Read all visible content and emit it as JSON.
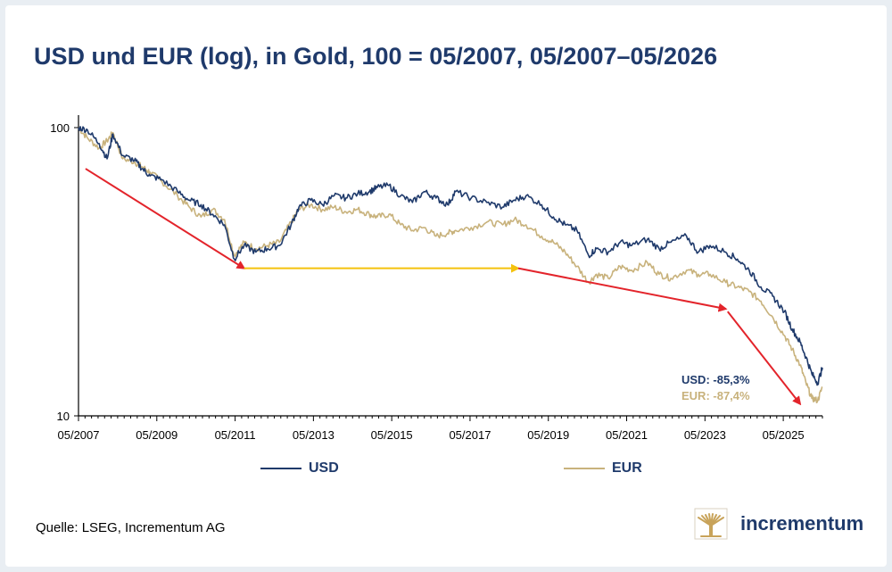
{
  "title": "USD und EUR (log), in Gold, 100 = 05/2007, 05/2007–05/2026",
  "source": "Quelle: LSEG, Incrementum AG",
  "logo_text": "incrementum",
  "colors": {
    "title": "#1f3a6b",
    "usd": "#1f3a6b",
    "eur": "#c8b27c",
    "red_arrow": "#e3242b",
    "yellow_arrow": "#f4c20d",
    "logo_gold": "#c8a35a"
  },
  "legend": {
    "usd": "USD",
    "eur": "EUR"
  },
  "annotations": {
    "usd": "USD: -85,3%",
    "eur": "EUR: -87,4%"
  },
  "chart_data": {
    "type": "line",
    "title": "USD und EUR (log), in Gold, 100 = 05/2007, 05/2007–05/2026",
    "xlabel": "",
    "ylabel": "",
    "y_scale": "log",
    "ylim": [
      10,
      100
    ],
    "y_ticks": [
      "100",
      "10"
    ],
    "x_ticks": [
      "05/2007",
      "05/2009",
      "05/2011",
      "05/2013",
      "05/2015",
      "05/2017",
      "05/2019",
      "05/2021",
      "05/2023",
      "05/2025"
    ],
    "xlim": [
      2007.37,
      2026.37
    ],
    "legend_position": "bottom",
    "grid": false,
    "series": [
      {
        "name": "USD",
        "x": [
          2007.37,
          2007.6,
          2007.9,
          2008.1,
          2008.25,
          2008.5,
          2008.8,
          2009.0,
          2009.2,
          2009.5,
          2009.9,
          2010.2,
          2010.5,
          2010.8,
          2011.1,
          2011.35,
          2011.6,
          2011.9,
          2012.2,
          2012.5,
          2012.8,
          2013.0,
          2013.3,
          2013.6,
          2013.9,
          2014.2,
          2014.5,
          2014.8,
          2015.0,
          2015.3,
          2015.6,
          2015.9,
          2016.2,
          2016.5,
          2016.8,
          2017.0,
          2017.4,
          2017.8,
          2018.2,
          2018.5,
          2018.8,
          2019.2,
          2019.5,
          2019.8,
          2020.1,
          2020.4,
          2020.6,
          2020.9,
          2021.2,
          2021.5,
          2021.9,
          2022.2,
          2022.5,
          2022.9,
          2023.2,
          2023.5,
          2023.9,
          2024.2,
          2024.5,
          2024.8,
          2025.1,
          2025.4,
          2025.6,
          2025.8,
          2025.95,
          2026.1,
          2026.25,
          2026.37
        ],
        "values": [
          100,
          98,
          88,
          78,
          95,
          80,
          77,
          72,
          68,
          66,
          60,
          56,
          54,
          50,
          46,
          35,
          39,
          37,
          38,
          39,
          46,
          53,
          56,
          54,
          58,
          57,
          59,
          60,
          62,
          63,
          58,
          55,
          60,
          57,
          54,
          60,
          57,
          55,
          53,
          56,
          58,
          54,
          49,
          46,
          44,
          36,
          38,
          37,
          40,
          39,
          41,
          38,
          40,
          42,
          37,
          39,
          37,
          35,
          32,
          28,
          26,
          23,
          20,
          18,
          16,
          14,
          13,
          14.7
        ]
      },
      {
        "name": "EUR",
        "x": [
          2007.37,
          2007.6,
          2007.9,
          2008.1,
          2008.25,
          2008.5,
          2008.8,
          2009.0,
          2009.2,
          2009.5,
          2009.9,
          2010.2,
          2010.5,
          2010.8,
          2011.1,
          2011.35,
          2011.6,
          2011.9,
          2012.2,
          2012.5,
          2012.8,
          2013.0,
          2013.3,
          2013.6,
          2013.9,
          2014.2,
          2014.5,
          2014.8,
          2015.0,
          2015.3,
          2015.6,
          2015.9,
          2016.2,
          2016.5,
          2016.8,
          2017.0,
          2017.4,
          2017.8,
          2018.2,
          2018.5,
          2018.8,
          2019.2,
          2019.5,
          2019.8,
          2020.1,
          2020.4,
          2020.6,
          2020.9,
          2021.2,
          2021.5,
          2021.9,
          2022.2,
          2022.5,
          2022.9,
          2023.2,
          2023.5,
          2023.9,
          2024.2,
          2024.5,
          2024.8,
          2025.1,
          2025.4,
          2025.6,
          2025.8,
          2025.95,
          2026.1,
          2026.25,
          2026.37
        ],
        "values": [
          100,
          92,
          85,
          90,
          96,
          78,
          76,
          73,
          70,
          65,
          58,
          53,
          49,
          52,
          48,
          36,
          40,
          38,
          39,
          40,
          47,
          52,
          54,
          52,
          53,
          51,
          52,
          50,
          49,
          50,
          46,
          44,
          45,
          42,
          43,
          44,
          45,
          47,
          46,
          48,
          46,
          42,
          40,
          37,
          33,
          29,
          31,
          30,
          33,
          32,
          34,
          31,
          30,
          32,
          31,
          31,
          29,
          28,
          27,
          25,
          22,
          19,
          17,
          15,
          13,
          11.5,
          11.3,
          12.6
        ]
      }
    ],
    "arrows": [
      {
        "color": "red",
        "from": [
          2007.55,
          72
        ],
        "to": [
          2011.6,
          32.5
        ]
      },
      {
        "color": "yellow",
        "from": [
          2011.6,
          32.5
        ],
        "to": [
          2018.6,
          32.5
        ]
      },
      {
        "color": "red",
        "from": [
          2018.6,
          32.5
        ],
        "to": [
          2023.9,
          23.5
        ]
      },
      {
        "color": "red",
        "from": [
          2023.95,
          23
        ],
        "to": [
          2025.8,
          11
        ]
      }
    ]
  }
}
